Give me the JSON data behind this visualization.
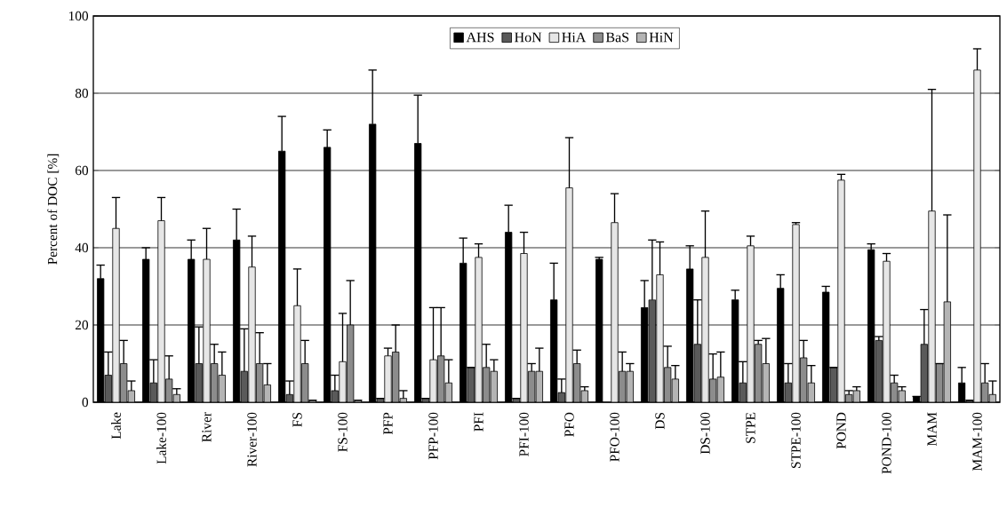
{
  "chart_data": {
    "type": "bar",
    "ylabel": "Percent of DOC [%]",
    "categories": [
      "Lake",
      "Lake-100",
      "River",
      "River-100",
      "FS",
      "FS-100",
      "PFP",
      "PFP-100",
      "PFI",
      "PFI-100",
      "PFO",
      "PFO-100",
      "DS",
      "DS-100",
      "STPE",
      "STPE-100",
      "POND",
      "POND-100",
      "MAM",
      "MAM-100"
    ],
    "series": [
      {
        "name": "AHS",
        "color": "#000000",
        "values": [
          32,
          37,
          37,
          42,
          65,
          66,
          72,
          67,
          36,
          44,
          26.5,
          37,
          24.5,
          34.5,
          26.5,
          29.5,
          28.5,
          39.5,
          1.5,
          5
        ],
        "errors": [
          3.5,
          3,
          5,
          8,
          9,
          4.5,
          14,
          12.5,
          6.5,
          7,
          9.5,
          0.5,
          7,
          6,
          2.5,
          3.5,
          1.5,
          1.5,
          null,
          4
        ]
      },
      {
        "name": "HoN",
        "color": "#5a5a5a",
        "values": [
          7,
          5,
          10,
          8,
          2,
          3,
          1,
          1,
          9,
          1,
          2.5,
          null,
          26.5,
          15,
          5,
          5,
          9,
          16,
          15,
          0.5
        ],
        "errors": [
          6,
          6,
          9.5,
          11,
          3.5,
          4,
          null,
          null,
          null,
          null,
          3.5,
          null,
          15.5,
          11.5,
          5.5,
          5,
          null,
          1,
          9,
          null
        ]
      },
      {
        "name": "HiA",
        "color": "#e6e6e6",
        "values": [
          45,
          47,
          37,
          35,
          25,
          10.5,
          12,
          11,
          37.5,
          38.5,
          55.5,
          46.5,
          33,
          37.5,
          40.5,
          46,
          57.5,
          36.5,
          49.5,
          86
        ],
        "errors": [
          8,
          6,
          8,
          8,
          9.5,
          12.5,
          2,
          13.5,
          3.5,
          5.5,
          13,
          7.5,
          8.5,
          12,
          2.5,
          0.5,
          1.5,
          2,
          31.5,
          5.5
        ]
      },
      {
        "name": "BaS",
        "color": "#8c8c8c",
        "values": [
          10,
          6,
          10,
          10,
          10,
          20,
          13,
          12,
          9,
          8,
          10,
          8,
          9,
          6,
          15,
          11.5,
          2,
          5,
          10,
          5
        ],
        "errors": [
          6,
          6,
          5,
          8,
          6,
          11.5,
          7,
          12.5,
          6,
          2,
          3.5,
          5,
          5.5,
          6.5,
          1,
          4.5,
          1,
          2,
          null,
          5
        ]
      },
      {
        "name": "HiN",
        "color": "#b4b4b4",
        "values": [
          3,
          2,
          7,
          4.5,
          0.5,
          0.5,
          1,
          5,
          8,
          8,
          3,
          8,
          6,
          6.5,
          10,
          5,
          3,
          3,
          26,
          2
        ],
        "errors": [
          2.5,
          1.5,
          6,
          5.5,
          null,
          null,
          2,
          6,
          3,
          6,
          1,
          2,
          3.5,
          6.5,
          6.5,
          4.5,
          1,
          1,
          22.5,
          3.5
        ]
      }
    ],
    "ylim": [
      0,
      100
    ],
    "yticks": [
      0,
      20,
      40,
      60,
      80,
      100
    ],
    "grid": "y",
    "legend": "top"
  }
}
